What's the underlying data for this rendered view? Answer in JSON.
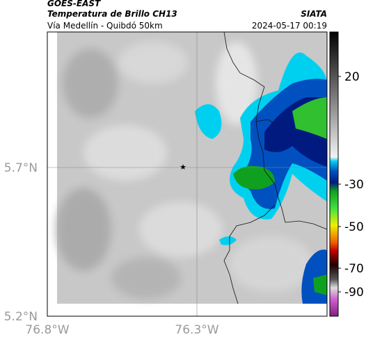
{
  "header": {
    "satellite": "GOES-EAST",
    "title": "Temperatura de Brillo CH13",
    "subtitle": "Vía Medellín - Quibdó 50km",
    "source": "SIATA",
    "timestamp": "2024-05-17 00:19"
  },
  "map": {
    "lat_labels": [
      "5.7°N",
      "5.2°N"
    ],
    "lon_labels": [
      "76.8°W",
      "76.3°W"
    ]
  },
  "colorbar": {
    "labels": [
      "20",
      "-30",
      "-50",
      "-70",
      "-90"
    ]
  }
}
